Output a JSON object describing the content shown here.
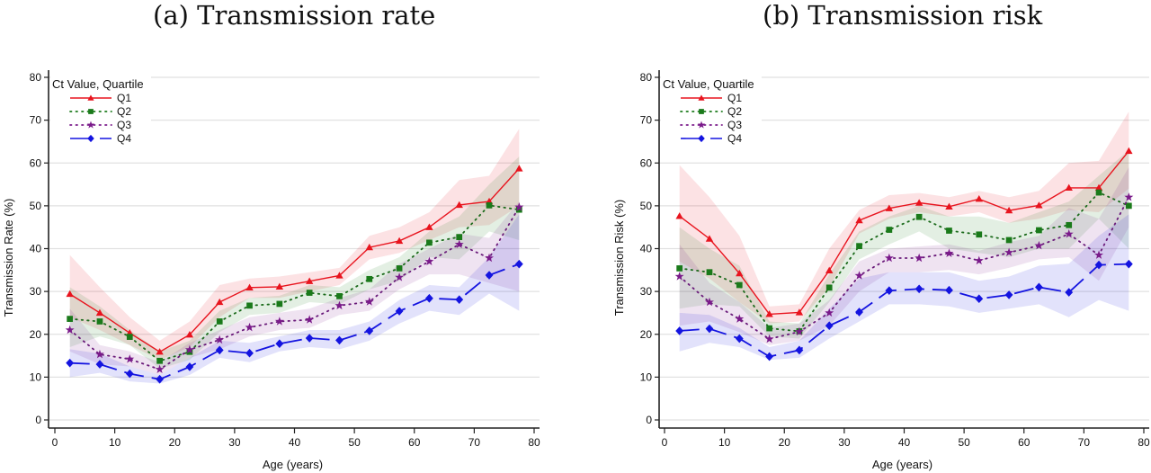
{
  "chart_data": [
    {
      "type": "line",
      "panel": "a",
      "title": "(a) Transmission rate",
      "xlabel": "Age (years)",
      "ylabel": "Transmission Rate (%)",
      "xlim": [
        0,
        80
      ],
      "ylim": [
        0,
        80
      ],
      "xticks": [
        0,
        10,
        20,
        30,
        40,
        50,
        60,
        70,
        80
      ],
      "yticks": [
        0,
        10,
        20,
        30,
        40,
        50,
        60,
        70,
        80
      ],
      "grid": true,
      "legend": {
        "title": "Ct Value, Quartile",
        "placement": "top-left"
      },
      "x": [
        2.5,
        7.5,
        12.5,
        17.5,
        22.5,
        27.5,
        32.5,
        37.5,
        42.5,
        47.5,
        52.5,
        57.5,
        62.5,
        67.5,
        72.5,
        77.5
      ],
      "series": [
        {
          "name": "Q1",
          "color": "#e8141e",
          "marker": "triangle",
          "line": "solid",
          "values": [
            29.4,
            25.0,
            20.3,
            15.9,
            19.9,
            27.5,
            30.9,
            31.1,
            32.4,
            33.7,
            40.3,
            41.8,
            45.0,
            50.2,
            51.0,
            58.7
          ],
          "ci_upper": [
            38.5,
            31,
            24,
            18.5,
            23,
            31.5,
            33,
            33.5,
            34.5,
            35.5,
            43,
            45,
            48.5,
            56,
            57,
            68
          ],
          "ci_lower": [
            24,
            21,
            17.5,
            14,
            17,
            24,
            28.5,
            28.5,
            30,
            31.5,
            37.5,
            39,
            42,
            45,
            45.5,
            50
          ]
        },
        {
          "name": "Q2",
          "color": "#1a7a1a",
          "marker": "square",
          "line": "dot",
          "values": [
            23.6,
            23.0,
            19.4,
            13.8,
            15.9,
            23.0,
            26.7,
            27.1,
            29.7,
            28.9,
            32.9,
            35.4,
            41.4,
            42.7,
            50.1,
            49.1
          ],
          "ci_upper": [
            31,
            26.5,
            21,
            16,
            18.5,
            25.5,
            28.5,
            29,
            31.5,
            31,
            35,
            38,
            44,
            47.5,
            55,
            61.5
          ],
          "ci_lower": [
            17,
            19.5,
            17.5,
            12,
            14,
            20.5,
            24.5,
            25,
            27.5,
            27,
            30.5,
            32.5,
            38,
            37.5,
            44,
            42
          ]
        },
        {
          "name": "Q3",
          "color": "#7a1a8a",
          "marker": "star",
          "line": "dot",
          "values": [
            21.0,
            15.3,
            14.2,
            11.8,
            16.4,
            18.7,
            21.6,
            23.0,
            23.4,
            26.7,
            27.6,
            33.3,
            37.0,
            41.0,
            37.8,
            49.7
          ],
          "ci_upper": [
            26,
            17.5,
            16,
            13.5,
            18,
            21,
            24,
            25,
            26,
            28.5,
            30.5,
            36.5,
            40,
            43.5,
            42.5,
            51
          ],
          "ci_lower": [
            16,
            13,
            12.5,
            10.5,
            14.5,
            16.5,
            19.5,
            21,
            21.5,
            24.5,
            25.5,
            30.5,
            34,
            34,
            32,
            30
          ]
        },
        {
          "name": "Q4",
          "color": "#1414e0",
          "marker": "diamond",
          "line": "longdash",
          "values": [
            13.3,
            13.0,
            10.8,
            9.5,
            12.4,
            16.3,
            15.6,
            17.8,
            19.1,
            18.6,
            20.8,
            25.4,
            28.4,
            28.1,
            33.8,
            36.4
          ],
          "ci_upper": [
            16.5,
            15.5,
            12.5,
            10.5,
            14.5,
            18.5,
            18,
            19.5,
            21,
            21,
            23,
            28,
            31.5,
            31,
            38,
            48
          ],
          "ci_lower": [
            10,
            11,
            9,
            8.5,
            10.5,
            14.5,
            13.5,
            16,
            17,
            16.5,
            18.5,
            22.5,
            25.5,
            24.5,
            29.5,
            25.5
          ]
        }
      ]
    },
    {
      "type": "line",
      "panel": "b",
      "title": "(b) Transmission risk",
      "xlabel": "Age (years)",
      "ylabel": "Transmission Risk (%)",
      "xlim": [
        0,
        80
      ],
      "ylim": [
        0,
        80
      ],
      "xticks": [
        0,
        10,
        20,
        30,
        40,
        50,
        60,
        70,
        80
      ],
      "yticks": [
        0,
        10,
        20,
        30,
        40,
        50,
        60,
        70,
        80
      ],
      "grid": true,
      "legend": {
        "title": "Ct Value, Quartile",
        "placement": "top-left"
      },
      "x": [
        2.5,
        7.5,
        12.5,
        17.5,
        22.5,
        27.5,
        32.5,
        37.5,
        42.5,
        47.5,
        52.5,
        57.5,
        62.5,
        67.5,
        72.5,
        77.5
      ],
      "series": [
        {
          "name": "Q1",
          "color": "#e8141e",
          "marker": "triangle",
          "line": "solid",
          "values": [
            47.6,
            42.3,
            34.2,
            24.7,
            25.1,
            34.9,
            46.6,
            49.4,
            50.7,
            49.8,
            51.6,
            48.9,
            50.1,
            54.2,
            54.2,
            62.8
          ],
          "ci_upper": [
            59.5,
            52,
            43,
            26.5,
            27,
            40,
            49,
            52.5,
            53,
            52,
            53.5,
            52,
            53.5,
            60,
            60.5,
            72
          ],
          "ci_lower": [
            37,
            33,
            27.5,
            22.5,
            23,
            31,
            43.5,
            47,
            48.5,
            47.5,
            48.5,
            46,
            47,
            49,
            48.5,
            54
          ]
        },
        {
          "name": "Q2",
          "color": "#1a7a1a",
          "marker": "square",
          "line": "dot",
          "values": [
            35.4,
            34.5,
            31.5,
            21.4,
            20.7,
            30.9,
            40.6,
            44.4,
            47.4,
            44.2,
            43.3,
            42.0,
            44.3,
            45.5,
            53.1,
            50.0
          ],
          "ci_upper": [
            45,
            40,
            36,
            23,
            22.5,
            34,
            44,
            47.5,
            50,
            47.5,
            47.5,
            46,
            48.5,
            51,
            57,
            63
          ],
          "ci_lower": [
            26,
            27,
            26.5,
            19.5,
            19,
            27.5,
            37.5,
            41,
            44,
            40,
            39,
            38,
            40,
            40,
            47,
            40
          ]
        },
        {
          "name": "Q3",
          "color": "#7a1a8a",
          "marker": "star",
          "line": "dot",
          "values": [
            33.5,
            27.5,
            23.6,
            18.9,
            20.6,
            25.0,
            33.7,
            37.8,
            37.8,
            38.9,
            37.2,
            39.1,
            40.7,
            43.4,
            38.5,
            52.0
          ],
          "ci_upper": [
            41,
            32,
            27.5,
            21.5,
            22.5,
            28,
            37,
            40,
            40.5,
            41,
            39.5,
            41.5,
            43,
            49.5,
            47,
            59
          ],
          "ci_lower": [
            22,
            23,
            20.5,
            17.5,
            18.5,
            22,
            30,
            34.5,
            34.5,
            35,
            34,
            35.5,
            37.5,
            38,
            32.5,
            45
          ]
        },
        {
          "name": "Q4",
          "color": "#1414e0",
          "marker": "diamond",
          "line": "longdash",
          "values": [
            20.8,
            21.3,
            19.0,
            14.8,
            16.3,
            22.0,
            25.2,
            30.2,
            30.6,
            30.3,
            28.3,
            29.2,
            31.0,
            29.8,
            36.2,
            36.4
          ],
          "ci_upper": [
            25,
            24.5,
            21.5,
            17,
            18.5,
            26,
            33,
            34.5,
            34.5,
            34.5,
            32.5,
            33.5,
            36,
            36.5,
            43,
            48
          ],
          "ci_lower": [
            16,
            18,
            17,
            14,
            14.5,
            19,
            23,
            27,
            27,
            26.5,
            25,
            26,
            27,
            24,
            28,
            25.5
          ]
        }
      ]
    }
  ]
}
